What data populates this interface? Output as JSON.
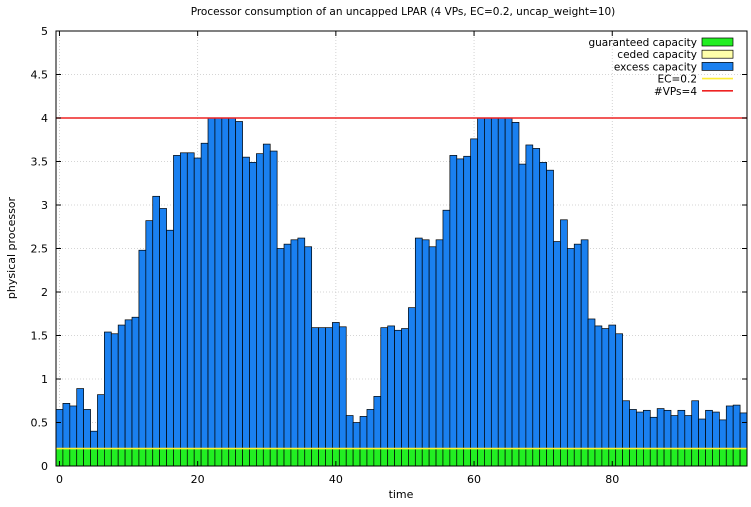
{
  "chart_data": {
    "type": "bar",
    "stacked": true,
    "title": "Processor consumption of an uncapped LPAR (4 VPs, EC=0.2, uncap_weight=10)",
    "xlabel": "time",
    "ylabel": "physical processor",
    "xlim": [
      -0.5,
      99.5
    ],
    "ylim": [
      0,
      5
    ],
    "grid": true,
    "legend_position": "top-right",
    "x_ticks": [
      "0",
      "20",
      "40",
      "60",
      "80"
    ],
    "y_ticks": [
      "0",
      "0.5",
      "1",
      "1.5",
      "2",
      "2.5",
      "3",
      "3.5",
      "4",
      "4.5",
      "5"
    ],
    "x": [
      0,
      1,
      2,
      3,
      4,
      5,
      6,
      7,
      8,
      9,
      10,
      11,
      12,
      13,
      14,
      15,
      16,
      17,
      18,
      19,
      20,
      21,
      22,
      23,
      24,
      25,
      26,
      27,
      28,
      29,
      30,
      31,
      32,
      33,
      34,
      35,
      36,
      37,
      38,
      39,
      40,
      41,
      42,
      43,
      44,
      45,
      46,
      47,
      48,
      49,
      50,
      51,
      52,
      53,
      54,
      55,
      56,
      57,
      58,
      59,
      60,
      61,
      62,
      63,
      64,
      65,
      66,
      67,
      68,
      69,
      70,
      71,
      72,
      73,
      74,
      75,
      76,
      77,
      78,
      79,
      80,
      81,
      82,
      83,
      84,
      85,
      86,
      87,
      88,
      89,
      90,
      91,
      92,
      93,
      94,
      95,
      96,
      97,
      98,
      99
    ],
    "series": [
      {
        "name": "guaranteed capacity",
        "color": "#22ee22",
        "values": [
          0.2,
          0.2,
          0.2,
          0.2,
          0.2,
          0.2,
          0.2,
          0.2,
          0.2,
          0.2,
          0.2,
          0.2,
          0.2,
          0.2,
          0.2,
          0.2,
          0.2,
          0.2,
          0.2,
          0.2,
          0.2,
          0.2,
          0.2,
          0.2,
          0.2,
          0.2,
          0.2,
          0.2,
          0.2,
          0.2,
          0.2,
          0.2,
          0.2,
          0.2,
          0.2,
          0.2,
          0.2,
          0.2,
          0.2,
          0.2,
          0.2,
          0.2,
          0.2,
          0.2,
          0.2,
          0.2,
          0.2,
          0.2,
          0.2,
          0.2,
          0.2,
          0.2,
          0.2,
          0.2,
          0.2,
          0.2,
          0.2,
          0.2,
          0.2,
          0.2,
          0.2,
          0.2,
          0.2,
          0.2,
          0.2,
          0.2,
          0.2,
          0.2,
          0.2,
          0.2,
          0.2,
          0.2,
          0.2,
          0.2,
          0.2,
          0.2,
          0.2,
          0.2,
          0.2,
          0.2,
          0.2,
          0.2,
          0.2,
          0.2,
          0.2,
          0.2,
          0.2,
          0.2,
          0.2,
          0.2,
          0.2,
          0.2,
          0.2,
          0.2,
          0.2,
          0.2,
          0.2,
          0.2,
          0.2,
          0.2
        ]
      },
      {
        "name": "ceded capacity",
        "color": "#ffffaa",
        "values": [
          0,
          0,
          0,
          0,
          0,
          0,
          0,
          0,
          0,
          0,
          0,
          0,
          0,
          0,
          0,
          0,
          0,
          0,
          0,
          0,
          0,
          0,
          0,
          0,
          0,
          0,
          0,
          0,
          0,
          0,
          0,
          0,
          0,
          0,
          0,
          0,
          0,
          0,
          0,
          0,
          0,
          0,
          0,
          0,
          0,
          0,
          0,
          0,
          0,
          0,
          0,
          0,
          0,
          0,
          0,
          0,
          0,
          0,
          0,
          0,
          0,
          0,
          0,
          0,
          0,
          0,
          0,
          0,
          0,
          0,
          0,
          0,
          0,
          0,
          0,
          0,
          0,
          0,
          0,
          0,
          0,
          0,
          0,
          0,
          0,
          0,
          0,
          0,
          0,
          0,
          0,
          0,
          0,
          0,
          0,
          0,
          0,
          0,
          0,
          0
        ]
      },
      {
        "name": "excess capacity",
        "color": "#1a80f0",
        "values": [
          0.45,
          0.52,
          0.49,
          0.69,
          0.45,
          0.2,
          0.62,
          1.34,
          1.32,
          1.42,
          1.48,
          1.51,
          2.28,
          2.62,
          2.9,
          2.76,
          2.51,
          3.37,
          3.4,
          3.4,
          3.34,
          3.51,
          3.8,
          3.8,
          3.8,
          3.8,
          3.76,
          3.35,
          3.29,
          3.39,
          3.5,
          3.42,
          2.3,
          2.35,
          2.4,
          2.42,
          2.32,
          1.39,
          1.39,
          1.39,
          1.45,
          1.4,
          0.38,
          0.3,
          0.37,
          0.45,
          0.6,
          1.39,
          1.41,
          1.36,
          1.38,
          1.62,
          2.42,
          2.4,
          2.32,
          2.4,
          2.74,
          3.37,
          3.33,
          3.36,
          3.56,
          3.8,
          3.8,
          3.8,
          3.8,
          3.8,
          3.75,
          3.27,
          3.49,
          3.45,
          3.29,
          3.2,
          2.38,
          2.63,
          2.3,
          2.35,
          2.4,
          1.49,
          1.41,
          1.38,
          1.42,
          1.32,
          0.55,
          0.45,
          0.42,
          0.44,
          0.36,
          0.46,
          0.44,
          0.38,
          0.44,
          0.38,
          0.55,
          0.34,
          0.44,
          0.42,
          0.33,
          0.49,
          0.5,
          0.41
        ]
      }
    ],
    "reference_lines": [
      {
        "name": "EC=0.2",
        "value": 0.2,
        "color": "#ffee33"
      },
      {
        "name": "#VPs=4",
        "value": 4,
        "color": "#ee2222"
      }
    ]
  }
}
